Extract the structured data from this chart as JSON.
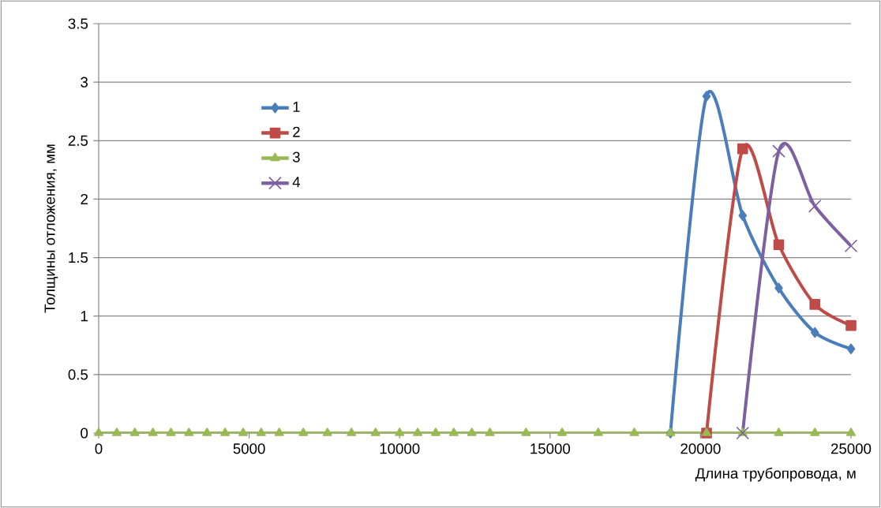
{
  "chart_data": {
    "type": "line",
    "xlabel": "Длина трубопровода, м",
    "ylabel": "Толщины отложения, мм",
    "x": [
      0,
      600,
      1200,
      1800,
      2400,
      3000,
      3600,
      4200,
      4800,
      5400,
      6000,
      6800,
      7600,
      8400,
      9200,
      10000,
      10600,
      11200,
      11800,
      12400,
      13000,
      14200,
      15400,
      16600,
      17800,
      19000,
      20200,
      21400,
      22600,
      23800,
      25000
    ],
    "series": [
      {
        "name": "1",
        "color": "#4a7ebb",
        "marker": "diamond",
        "values": [
          null,
          null,
          null,
          null,
          null,
          null,
          null,
          null,
          null,
          null,
          null,
          null,
          null,
          null,
          null,
          null,
          null,
          null,
          null,
          null,
          null,
          null,
          null,
          null,
          null,
          0,
          2.88,
          1.86,
          1.24,
          0.86,
          0.72
        ]
      },
      {
        "name": "2",
        "color": "#be4b48",
        "marker": "square",
        "values": [
          null,
          null,
          null,
          null,
          null,
          null,
          null,
          null,
          null,
          null,
          null,
          null,
          null,
          null,
          null,
          null,
          null,
          null,
          null,
          null,
          null,
          null,
          null,
          null,
          null,
          null,
          0,
          2.43,
          1.61,
          1.1,
          0.92
        ]
      },
      {
        "name": "3",
        "color": "#98b954",
        "marker": "triangle",
        "values": [
          0,
          0,
          0,
          0,
          0,
          0,
          0,
          0,
          0,
          0,
          0,
          0,
          0,
          0,
          0,
          0,
          0,
          0,
          0,
          0,
          0,
          0,
          0,
          0,
          0,
          0,
          0,
          0,
          0,
          0,
          0
        ]
      },
      {
        "name": "4",
        "color": "#7d60a0",
        "marker": "cross",
        "values": [
          null,
          null,
          null,
          null,
          null,
          null,
          null,
          null,
          null,
          null,
          null,
          null,
          null,
          null,
          null,
          null,
          null,
          null,
          null,
          null,
          null,
          null,
          null,
          null,
          null,
          null,
          null,
          0,
          2.41,
          1.94,
          1.6
        ]
      }
    ],
    "xlim": [
      0,
      25000
    ],
    "xticks": [
      0,
      5000,
      10000,
      15000,
      20000,
      25000
    ],
    "ylim": [
      0,
      3.5
    ],
    "yticks": [
      0,
      0.5,
      1,
      1.5,
      2,
      2.5,
      3,
      3.5
    ],
    "grid": "y",
    "legend": "top left"
  }
}
